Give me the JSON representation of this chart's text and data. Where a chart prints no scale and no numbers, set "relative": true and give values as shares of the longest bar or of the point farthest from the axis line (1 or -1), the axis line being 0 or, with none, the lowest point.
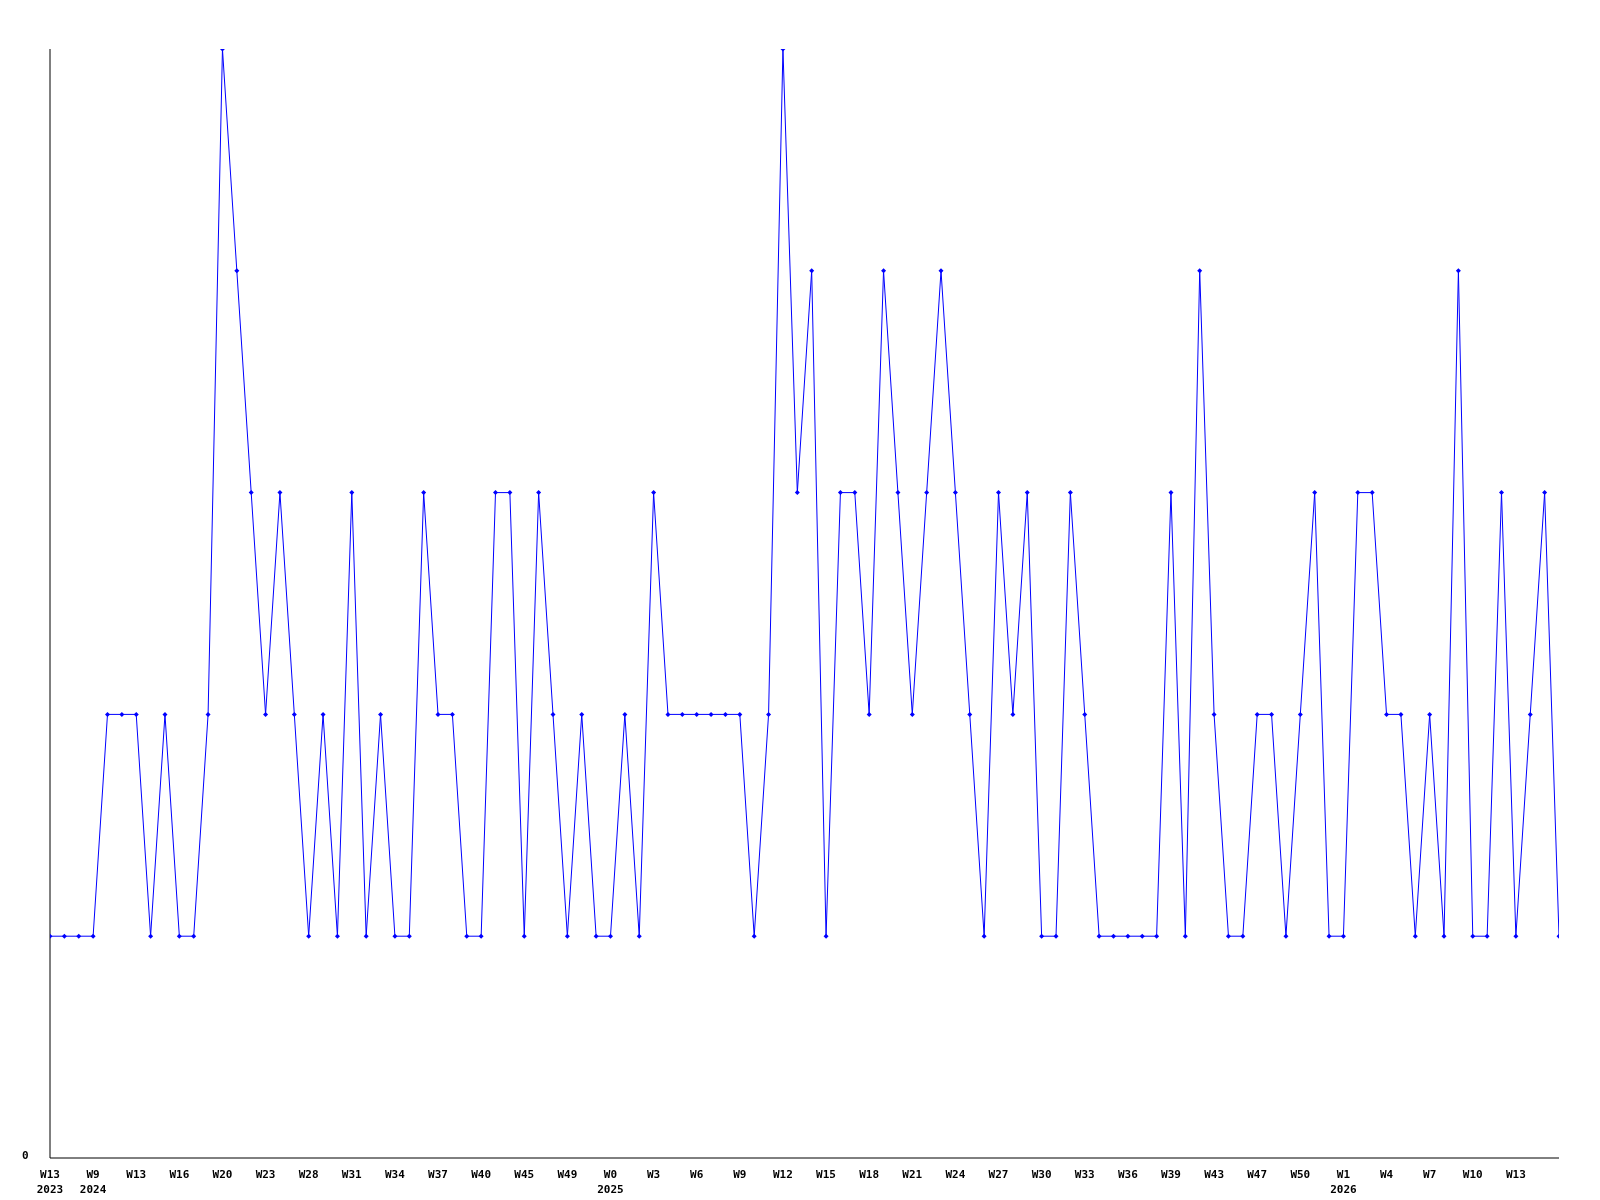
{
  "chart_data": {
    "type": "line",
    "relative": true,
    "color": "#0000ff",
    "marker": "diamond",
    "grid": false,
    "legend": false,
    "annotations": [
      "0"
    ],
    "categories": [
      "W13\n2023",
      null,
      null,
      "W9\n2024",
      null,
      null,
      "W13",
      null,
      null,
      "W16",
      null,
      null,
      "W20",
      null,
      null,
      "W23",
      null,
      null,
      "W28",
      null,
      null,
      "W31",
      null,
      null,
      "W34",
      null,
      null,
      "W37",
      null,
      null,
      "W40",
      null,
      null,
      "W45",
      null,
      null,
      "W49",
      null,
      null,
      "W0\n2025",
      null,
      null,
      "W3",
      null,
      null,
      "W6",
      null,
      null,
      "W9",
      null,
      null,
      "W12",
      null,
      null,
      "W15",
      null,
      null,
      "W18",
      null,
      null,
      "W21",
      null,
      null,
      "W24",
      null,
      null,
      "W27",
      null,
      null,
      "W30",
      null,
      null,
      "W33",
      null,
      null,
      "W36",
      null,
      null,
      "W39",
      null,
      null,
      "W43",
      null,
      null,
      "W47",
      null,
      null,
      "W50",
      null,
      null,
      "W1\n2026",
      null,
      null,
      "W4",
      null,
      null,
      "W7",
      null,
      null,
      "W10",
      null,
      null,
      "W13",
      null,
      null,
      null
    ],
    "values": [
      0.2,
      0.2,
      0.2,
      0.2,
      0.4,
      0.4,
      0.4,
      0.2,
      0.4,
      0.2,
      0.2,
      0.4,
      1,
      0.8,
      0.6,
      0.4,
      0.6,
      0.4,
      0.2,
      0.4,
      0.2,
      0.6,
      0.2,
      0.4,
      0.2,
      0.2,
      0.6,
      0.4,
      0.4,
      0.2,
      0.2,
      0.6,
      0.6,
      0.2,
      0.6,
      0.4,
      0.2,
      0.4,
      0.2,
      0.2,
      0.4,
      0.2,
      0.6,
      0.4,
      0.4,
      0.4,
      0.4,
      0.4,
      0.4,
      0.2,
      0.4,
      1,
      0.6,
      0.8,
      0.2,
      0.6,
      0.6,
      0.4,
      0.8,
      0.6,
      0.4,
      0.6,
      0.8,
      0.6,
      0.4,
      0.2,
      0.6,
      0.4,
      0.6,
      0.2,
      0.2,
      0.6,
      0.4,
      0.2,
      0.2,
      0.2,
      0.2,
      0.2,
      0.6,
      0.2,
      0.8,
      0.4,
      0.2,
      0.2,
      0.4,
      0.4,
      0.2,
      0.4,
      0.6,
      0.2,
      0.2,
      0.6,
      0.6,
      0.4,
      0.4,
      0.2,
      0.4,
      0.2,
      0.8,
      0.2,
      0.2,
      0.6,
      0.2,
      0.4,
      0.6,
      0.2
    ]
  }
}
